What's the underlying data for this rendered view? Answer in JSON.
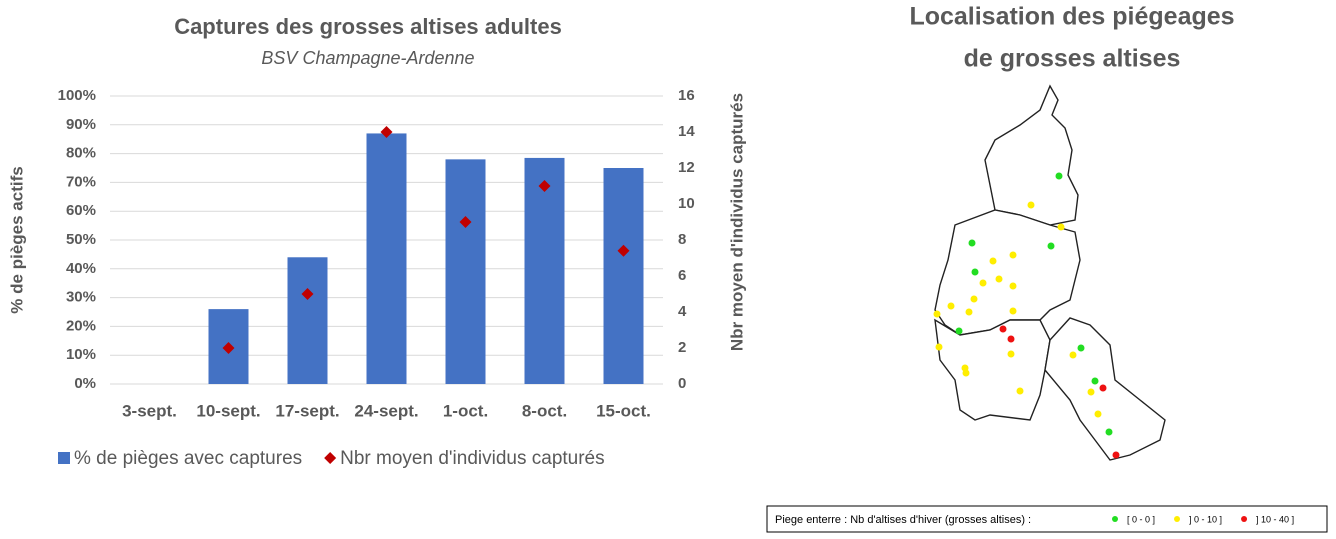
{
  "chart_data": {
    "type": "bar-scatter",
    "title": "Captures des grosses altises adultes",
    "subtitle": "BSV Champagne-Ardenne",
    "y_label": "% de pièges actifs",
    "y2_label": "Nbr moyen d'individus capturés",
    "categories": [
      "3-sept.",
      "10-sept.",
      "17-sept.",
      "24-sept.",
      "1-oct.",
      "8-oct.",
      "15-oct."
    ],
    "series": [
      {
        "name": "% de pièges avec captures",
        "type": "bar",
        "color": "#4472c4",
        "values": [
          null,
          26,
          44,
          87,
          78,
          78.5,
          75
        ]
      },
      {
        "name": "Nbr moyen d'individus capturés",
        "type": "scatter",
        "axis": "y2",
        "color": "#c00000",
        "values": [
          null,
          2,
          5,
          14,
          9,
          11,
          7.4
        ]
      }
    ],
    "ylim": [
      0,
      100
    ],
    "yticks": [
      {
        "value": 0,
        "label": "0%"
      },
      {
        "value": 10,
        "label": "10%"
      },
      {
        "value": 20,
        "label": "20%"
      },
      {
        "value": 30,
        "label": "30%"
      },
      {
        "value": 40,
        "label": "40%"
      },
      {
        "value": 50,
        "label": "50%"
      },
      {
        "value": 60,
        "label": "60%"
      },
      {
        "value": 70,
        "label": "70%"
      },
      {
        "value": 80,
        "label": "80%"
      },
      {
        "value": 90,
        "label": "90%"
      },
      {
        "value": 100,
        "label": "100%"
      }
    ],
    "y2lim": [
      0,
      16
    ],
    "y2ticks": [
      0,
      2,
      4,
      6,
      8,
      10,
      12,
      14,
      16
    ],
    "grid": true,
    "legend": "bottom"
  },
  "map": {
    "title": [
      "Localisation des piégeages",
      "de grosses altises"
    ],
    "legend": {
      "label": "Piege enterre : Nb d'altises d'hiver (grosses altises) :",
      "classes": [
        {
          "label": "[ 0 - 0 ]",
          "color": "#22dd22"
        },
        {
          "label": "] 0 - 10 ]",
          "color": "#ffee00"
        },
        {
          "label": "] 10 - 40 ]",
          "color": "#ee1111"
        }
      ]
    }
  }
}
